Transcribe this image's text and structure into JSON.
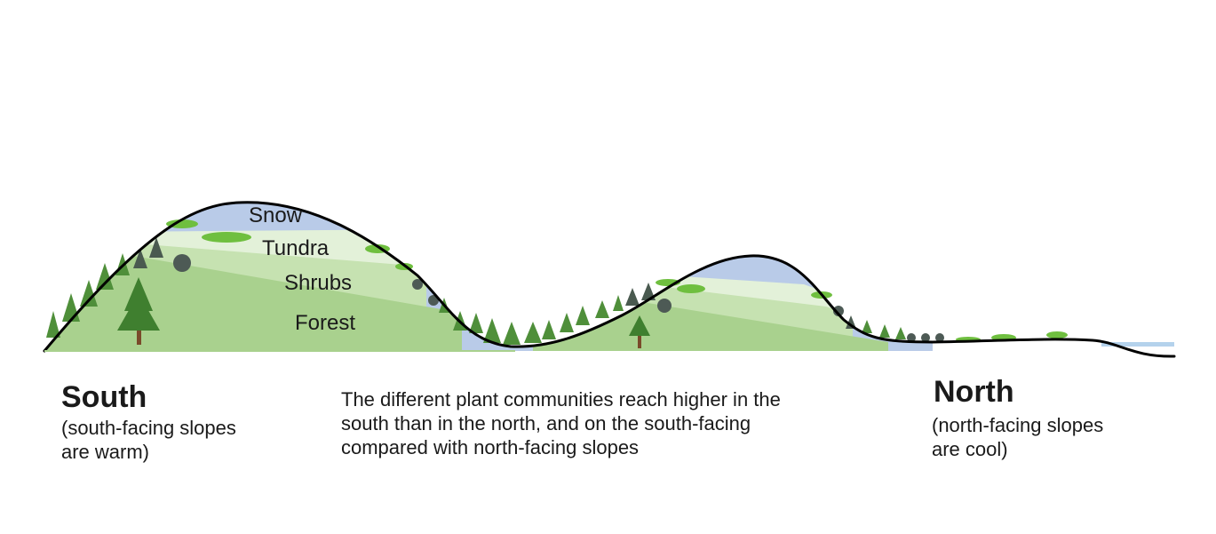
{
  "zones": {
    "snow": "Snow",
    "tundra": "Tundra",
    "shrubs": "Shrubs",
    "forest": "Forest"
  },
  "south": {
    "title": "South",
    "subtitle": "(south-facing slopes are warm)"
  },
  "north": {
    "title": "North",
    "subtitle": "(north-facing slopes are cool)"
  },
  "caption": "The different plant communities reach higher in the south than in the north, and on the south-facing compared with north-facing slopes",
  "colors": {
    "forest": "#a9d18e",
    "shrubs": "#c6e2b1",
    "tundra": "#e3f1d9",
    "snow": "#b9cbe8",
    "conifer": "#4f8f3a",
    "shrub_dark": "#4d5a55",
    "grass": "#6fbf3f",
    "water": "#b4d2ec",
    "outline": "#000000"
  }
}
